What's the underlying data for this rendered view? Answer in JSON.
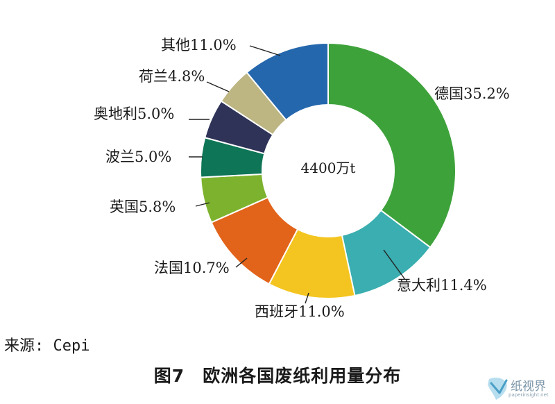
{
  "chart_data": {
    "type": "donut",
    "center_label": "4400万t",
    "slices": [
      {
        "name": "德国",
        "value": 35.2,
        "label": "德国35.2%",
        "color": "#3ea23b"
      },
      {
        "name": "意大利",
        "value": 11.4,
        "label": "意大利11.4%",
        "color": "#3aaeb0"
      },
      {
        "name": "西班牙",
        "value": 11.0,
        "label": "西班牙11.0%",
        "color": "#f4c520"
      },
      {
        "name": "法国",
        "value": 10.7,
        "label": "法国10.7%",
        "color": "#e2631a"
      },
      {
        "name": "英国",
        "value": 5.8,
        "label": "英国5.8%",
        "color": "#7db22e"
      },
      {
        "name": "波兰",
        "value": 5.0,
        "label": "波兰5.0%",
        "color": "#0e7556"
      },
      {
        "name": "奥地利",
        "value": 5.0,
        "label": "奥地利5.0%",
        "color": "#2f3358"
      },
      {
        "name": "荷兰",
        "value": 4.8,
        "label": "荷兰4.8%",
        "color": "#bdb582"
      },
      {
        "name": "其他",
        "value": 11.0,
        "label": "其他11.0%",
        "color": "#2467ad"
      }
    ]
  },
  "source": "来源: Cepi",
  "caption": "图7　欧洲各国废纸利用量分布",
  "watermark": {
    "text": "纸视界",
    "subtext": "paperinsight.net"
  }
}
